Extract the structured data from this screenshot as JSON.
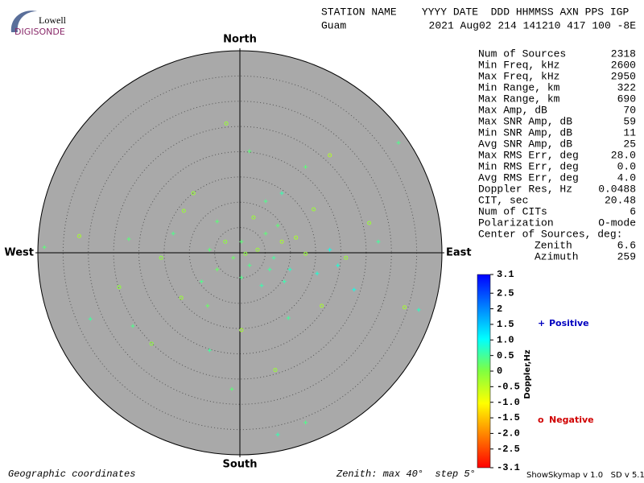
{
  "logo": {
    "top": "Lowell",
    "bottom": "DIGISONDE"
  },
  "header": {
    "labels": "STATION NAME    YYYY DATE  DDD HHMMSS AXN PPS IGP",
    "station": "Guam",
    "values": "2021 Aug02 214 141210 417 100 -8E"
  },
  "stats": [
    [
      "Num of Sources",
      "2318"
    ],
    [
      "Min Freq, kHz",
      "2600"
    ],
    [
      "Max Freq, kHz",
      "2950"
    ],
    [
      "Min Range, km",
      "322"
    ],
    [
      "Max Range, km",
      "690"
    ],
    [
      "Max Amp, dB",
      "70"
    ],
    [
      "Max SNR Amp, dB",
      "59"
    ],
    [
      "Min SNR Amp, dB",
      "11"
    ],
    [
      "Avg SNR Amp, dB",
      "25"
    ],
    [
      "Max RMS Err, deg",
      "28.0"
    ],
    [
      "Min RMS Err, deg",
      "0.0"
    ],
    [
      "Avg RMS Err, deg",
      "4.0"
    ],
    [
      "Doppler Res, Hz",
      "0.0488"
    ],
    [
      "CIT, sec",
      "20.48"
    ],
    [
      "Num of CITs",
      "6"
    ],
    [
      "Polarization",
      "O-mode"
    ]
  ],
  "center": {
    "title": "Center of Sources, deg:",
    "zenith_label": "Zenith",
    "zenith": "6.6",
    "azimuth_label": "Azimuth",
    "azimuth": "259"
  },
  "footer": {
    "left": "Geographic coordinates",
    "middle": "Zenith: max 40°  step 5°",
    "right": "ShowSkymap v 1.0   SD v 5.1"
  },
  "chart_data": {
    "type": "polar_scatter",
    "directions": {
      "north": "North",
      "south": "South",
      "east": "East",
      "west": "West"
    },
    "rlim": [
      0,
      40
    ],
    "rticks": [
      5,
      10,
      15,
      20,
      25,
      30,
      35
    ],
    "background": "#a9a9a9",
    "points": {
      "x": [
        31.4,
        -2.7,
        -38.7,
        -31.8,
        -29.6,
        -17.5,
        -1.6,
        7.5,
        7,
        13,
        35.4,
        32.6,
        27.4,
        25.6,
        13,
        17.8,
        8.3,
        -11.1,
        -22,
        -23.9,
        -21.2,
        -6,
        0.3,
        -6.4,
        -11.6,
        19.4,
        22.6,
        16.2,
        9.6,
        14.6,
        5.1,
        1.9,
        -9.2,
        -4.5,
        -15.6,
        -13.2,
        0.3,
        3.5,
        6.7,
        1.9,
        8.3,
        5.1,
        -1.3,
        9.9,
        13,
        0.3,
        4.3,
        -2.9,
        7.5,
        11.1,
        15.3,
        -4.5,
        2.7,
        8.8,
        5.9,
        1.1,
        -6,
        17.8,
        21,
        -7.6
      ],
      "y": [
        21.8,
        25.6,
        1.1,
        3.3,
        -13.1,
        -18,
        -27,
        -36,
        -23.2,
        -33.6,
        -11.3,
        -10.8,
        2.2,
        5.9,
        17,
        19.3,
        11.8,
        8.3,
        2.7,
        -6.8,
        -14.5,
        -19.3,
        -15.3,
        -10.5,
        -8.9,
        -2.5,
        -7.3,
        -10.5,
        -12.9,
        8.6,
        10.2,
        20.1,
        11.8,
        6.2,
        -1,
        3.8,
        2.2,
        0.6,
        -1,
        -2.5,
        2.2,
        3.8,
        -1,
        -3.3,
        -0.2,
        -4.9,
        -6.5,
        2.2,
        5.4,
        3,
        -4.1,
        -3.3,
        7,
        -5.7,
        -3.3,
        -0.2,
        0.6,
        0.6,
        -1,
        -5.7
      ],
      "doppler": [
        0.4,
        -0.2,
        0.3,
        -0.3,
        0.5,
        -0.1,
        0.3,
        0.6,
        -0.2,
        0.4,
        0.7,
        -0.3,
        0.5,
        -0.2,
        0.3,
        -0.4,
        0.6,
        -0.2,
        0.3,
        -0.1,
        0.4,
        0.5,
        -0.3,
        0.2,
        -0.2,
        0.8,
        0.9,
        -0.3,
        0.5,
        -0.2,
        0.4,
        0.3,
        -0.2,
        0.3,
        -0.1,
        0.4,
        0.3,
        -0.2,
        0.5,
        0.4,
        -0.3,
        0.3,
        0.2,
        0.7,
        -0.2,
        0.4,
        0.6,
        -0.1,
        0.3,
        -0.3,
        0.8,
        0.2,
        -0.2,
        0.6,
        0.5,
        -0.1,
        0.3,
        0.9,
        -0.2,
        0.4
      ]
    },
    "colorbar": {
      "label": "Doppler,Hz",
      "lim": [
        -3.1,
        3.1
      ],
      "colors": [
        "#ff0000",
        "#ff8000",
        "#ffff00",
        "#80ff40",
        "#00ffff",
        "#0080ff",
        "#0000ff"
      ],
      "ticks": [
        3.1,
        2.5,
        2,
        1.5,
        {
          "value": 1,
          "label": "1.0"
        },
        0.5,
        0,
        -0.5,
        {
          "value": -1,
          "label": "-1.0"
        },
        -1.5,
        {
          "value": -2,
          "label": "-2.0"
        },
        -2.5,
        -3.1
      ]
    },
    "legend": {
      "positive": {
        "symbol": "+",
        "name": "Positive",
        "color": "#0000c0"
      },
      "negative": {
        "symbol": "o",
        "name": "Negative",
        "color": "#d00000"
      }
    }
  }
}
